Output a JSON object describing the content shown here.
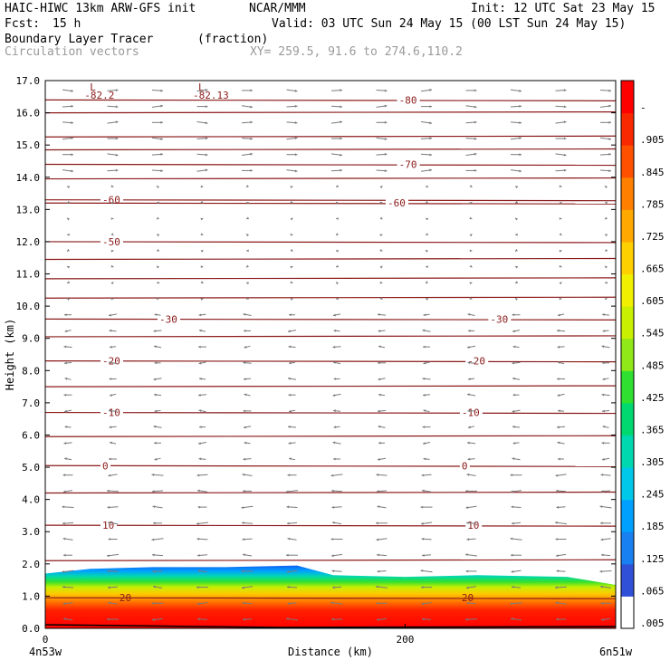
{
  "header": {
    "model": "HAIC-HIWC 13km ARW-GFS init",
    "org": "NCAR/MMM",
    "init": "Init: 12 UTC Sat 23 May 15",
    "fcst_label": "Fcst:",
    "fcst_value": "15 h",
    "valid": "Valid: 03 UTC Sun 24 May 15 (00 LST Sun 24 May 15)",
    "field": "Boundary Layer Tracer",
    "field_units": "(fraction)",
    "vectors": "Circulation vectors",
    "xy": "XY= 259.5, 91.6 to 274.6,110.2"
  },
  "chart_data": {
    "type": "heatmap",
    "title": "Boundary Layer Tracer",
    "units": "(fraction)",
    "ylabel": "Height (km)",
    "xlabel": "Distance (km)",
    "ylim": [
      0,
      17
    ],
    "xlim": [
      0,
      317
    ],
    "yticks": [
      "0.0",
      "1.0",
      "2.0",
      "3.0",
      "4.0",
      "5.0",
      "6.0",
      "7.0",
      "8.0",
      "9.0",
      "10.0",
      "11.0",
      "12.0",
      "13.0",
      "14.0",
      "15.0",
      "16.0",
      "17.0"
    ],
    "xticks": [
      {
        "value": 0,
        "label": "0"
      },
      {
        "value": 200,
        "label": "200"
      }
    ],
    "x_endpoint_labels": [
      "4n53w",
      "6n51w"
    ],
    "colorbar": {
      "labels": [
        ".005",
        ".065",
        ".125",
        ".185",
        ".245",
        ".305",
        ".365",
        ".425",
        ".485",
        ".545",
        ".605",
        ".665",
        ".725",
        ".785",
        ".845",
        ".905",
        "-"
      ],
      "colors": [
        "#ffffff",
        "#3050d8",
        "#1880f0",
        "#00a0ff",
        "#00c8e8",
        "#00d8b0",
        "#00d870",
        "#30e030",
        "#90e818",
        "#c8f000",
        "#f0f000",
        "#ffd000",
        "#ffa800",
        "#ff8000",
        "#ff5000",
        "#f82800",
        "#ff0000"
      ]
    },
    "tracer_top_km": [
      {
        "x": 0,
        "top": 1.7
      },
      {
        "x": 25,
        "top": 1.85
      },
      {
        "x": 60,
        "top": 1.9
      },
      {
        "x": 100,
        "top": 1.9
      },
      {
        "x": 140,
        "top": 1.95
      },
      {
        "x": 160,
        "top": 1.65
      },
      {
        "x": 200,
        "top": 1.6
      },
      {
        "x": 240,
        "top": 1.65
      },
      {
        "x": 290,
        "top": 1.6
      },
      {
        "x": 317,
        "top": 1.35
      }
    ],
    "isotherms": [
      {
        "y": 16.4,
        "label": "-80",
        "label_x": 0.62
      },
      {
        "y": 14.4,
        "label": "-70",
        "label_x": 0.62
      },
      {
        "y": 13.3,
        "label": "-60",
        "label_x": 0.1
      },
      {
        "y": 13.2,
        "label": "-60",
        "label_x": 0.6
      },
      {
        "y": 12.0,
        "label": "-50",
        "label_x": 0.1
      },
      {
        "y": 9.6,
        "label": "-30",
        "label_x": 0.2
      },
      {
        "y": 9.6,
        "label": "-30",
        "label_x": 0.78
      },
      {
        "y": 8.3,
        "label": "-20",
        "label_x": 0.1
      },
      {
        "y": 8.3,
        "label": "-20",
        "label_x": 0.74
      },
      {
        "y": 6.7,
        "label": "-10",
        "label_x": 0.1
      },
      {
        "y": 6.7,
        "label": "-10",
        "label_x": 0.73
      },
      {
        "y": 5.05,
        "label": "0",
        "label_x": 0.1
      },
      {
        "y": 5.05,
        "label": "0",
        "label_x": 0.73
      },
      {
        "y": 3.2,
        "label": "10",
        "label_x": 0.1
      },
      {
        "y": 3.2,
        "label": "10",
        "label_x": 0.74
      },
      {
        "y": 0.95,
        "label": "20",
        "label_x": 0.13
      },
      {
        "y": 0.95,
        "label": "20",
        "label_x": 0.73
      }
    ],
    "extra_isotherms_km": [
      16.0,
      15.25,
      14.85,
      13.95,
      11.45,
      10.85,
      10.25,
      9.05,
      7.5,
      5.95,
      4.2,
      2.1
    ],
    "minima": [
      {
        "label": "L",
        "value": "-82.2",
        "x": 0.11
      },
      {
        "label": "L",
        "value": "-82.13",
        "x": 0.3
      }
    ]
  }
}
